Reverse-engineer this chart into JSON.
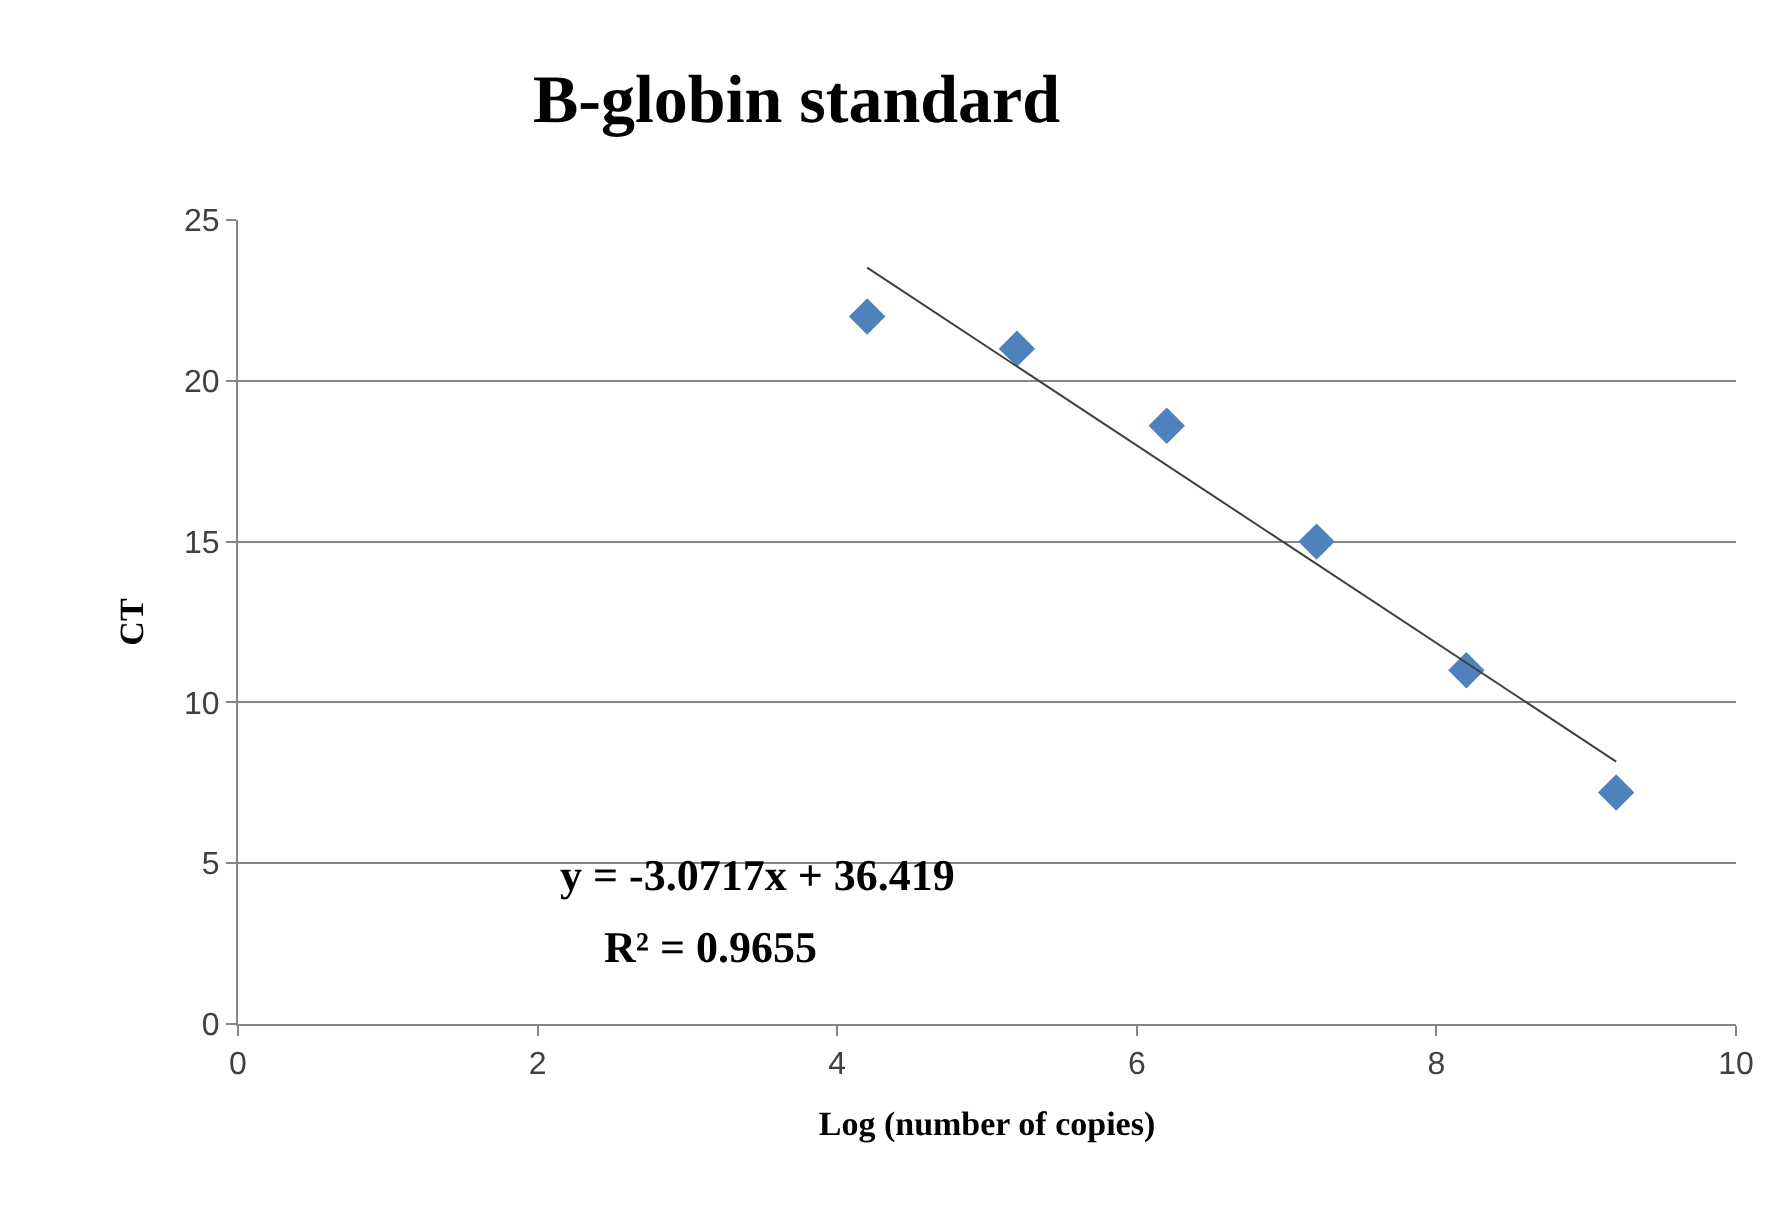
{
  "chart_data": {
    "type": "scatter",
    "title": "B-globin standard",
    "xlabel": "Log (number of copies)",
    "ylabel": "CT",
    "series": [
      {
        "marker": "diamond",
        "color": "#4f81bd",
        "x": [
          4.2,
          5.2,
          6.2,
          7.2,
          8.2,
          9.2
        ],
        "values": [
          22.0,
          21.0,
          18.6,
          15.0,
          11.0,
          7.2
        ]
      },
      {
        "type": "line",
        "marker": "none",
        "color": "#404040",
        "x": [
          4.2,
          9.2
        ],
        "values": [
          23.52,
          8.16
        ]
      }
    ],
    "annotations": [
      "y = -3.0717x + 36.419",
      "R² = 0.9655"
    ],
    "xlim": [
      0,
      10
    ],
    "xticks": [
      0,
      2,
      4,
      6,
      8,
      10
    ],
    "ylim": [
      0,
      25
    ],
    "yticks": [
      0,
      5,
      10,
      15,
      20,
      25
    ],
    "grid": "y"
  }
}
